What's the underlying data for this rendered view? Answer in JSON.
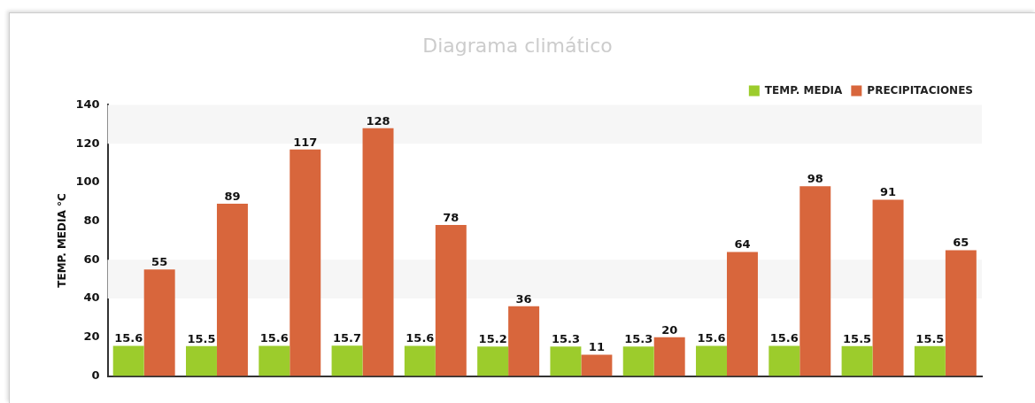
{
  "chart_data": {
    "type": "bar",
    "title": "Diagrama climático",
    "ylabel": "TEMP. MEDIA °C",
    "categories": [
      null,
      null,
      null,
      null,
      null,
      null,
      null,
      null,
      null,
      null,
      null,
      null
    ],
    "series": [
      {
        "name": "TEMP. MEDIA",
        "color": "#9ccc2c",
        "values": [
          15.6,
          15.5,
          15.6,
          15.7,
          15.6,
          15.2,
          15.3,
          15.3,
          15.6,
          15.6,
          15.5,
          15.5
        ]
      },
      {
        "name": "PRECIPITACIONES",
        "color": "#d8663c",
        "values": [
          55,
          89,
          117,
          128,
          78,
          36,
          11,
          20,
          64,
          98,
          91,
          65
        ]
      }
    ],
    "ylim": [
      0,
      140
    ],
    "yticks": [
      0,
      20,
      40,
      60,
      80,
      100,
      120,
      140
    ],
    "data_labels": true,
    "legend": "top right",
    "grid": false
  }
}
